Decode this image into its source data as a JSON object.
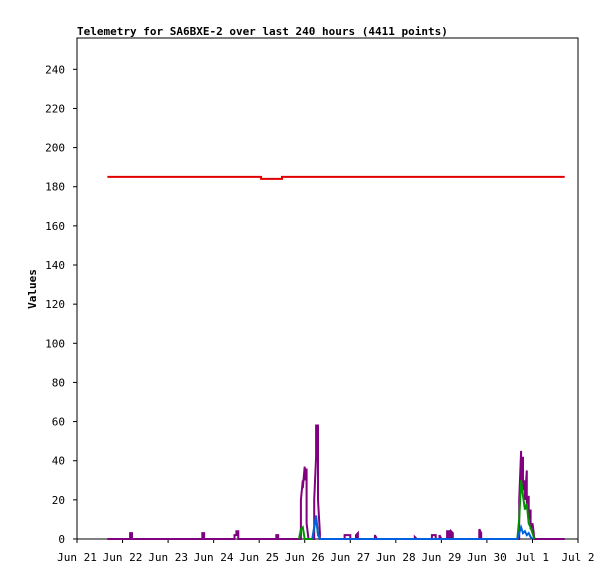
{
  "chart_data": {
    "type": "line",
    "title": "Telemetry for SA6BXE-2 over last 240 hours (4411 points)",
    "xlabel": "",
    "ylabel": "Values",
    "x_tick_labels": [
      "Jun 21",
      "Jun 22",
      "Jun 23",
      "Jun 24",
      "Jun 25",
      "Jun 26",
      "Jun 27",
      "Jun 28",
      "Jun 29",
      "Jun 30",
      "Jul 1",
      "Jul 2"
    ],
    "x_ticks_hours": [
      0,
      24,
      48,
      72,
      96,
      120,
      144,
      168,
      192,
      216,
      240,
      264
    ],
    "xlim_hours": [
      0,
      264
    ],
    "y_ticks": [
      0,
      20,
      40,
      60,
      80,
      100,
      120,
      140,
      160,
      180,
      200,
      220,
      240
    ],
    "ylim": [
      0,
      256
    ],
    "grid": false,
    "legend": "none",
    "series": [
      {
        "color": "#e00000",
        "points": [
          [
            16,
            185
          ],
          [
            97,
            185
          ],
          [
            97,
            184
          ],
          [
            108,
            184
          ],
          [
            108,
            185
          ],
          [
            257,
            185
          ]
        ]
      },
      {
        "color": "#800080",
        "points": [
          [
            16,
            0
          ],
          [
            28,
            0
          ],
          [
            28,
            3
          ],
          [
            29,
            3
          ],
          [
            29,
            0
          ],
          [
            66,
            0
          ],
          [
            66,
            3
          ],
          [
            67,
            3
          ],
          [
            67,
            0
          ],
          [
            83,
            0
          ],
          [
            83,
            2
          ],
          [
            84,
            2
          ],
          [
            84,
            4
          ],
          [
            85,
            4
          ],
          [
            85,
            0
          ],
          [
            105,
            0
          ],
          [
            105,
            2
          ],
          [
            106,
            2
          ],
          [
            106,
            0
          ],
          [
            118,
            0
          ],
          [
            118,
            20
          ],
          [
            119,
            30
          ],
          [
            119,
            26
          ],
          [
            120,
            37
          ],
          [
            120,
            30
          ],
          [
            121,
            36
          ],
          [
            121,
            8
          ],
          [
            122,
            0
          ],
          [
            125,
            0
          ],
          [
            125,
            20
          ],
          [
            126,
            42
          ],
          [
            126,
            58
          ],
          [
            127,
            58
          ],
          [
            127,
            20
          ],
          [
            128,
            3
          ],
          [
            128,
            0
          ],
          [
            141,
            0
          ],
          [
            141,
            2
          ],
          [
            144,
            2
          ],
          [
            144,
            0
          ],
          [
            147,
            0
          ],
          [
            147,
            2
          ],
          [
            148,
            3
          ],
          [
            148,
            0
          ],
          [
            157,
            0
          ],
          [
            157,
            2
          ],
          [
            158,
            0
          ],
          [
            178,
            0
          ],
          [
            178,
            1
          ],
          [
            179,
            0
          ],
          [
            187,
            0
          ],
          [
            187,
            2
          ],
          [
            189,
            2
          ],
          [
            189,
            0
          ],
          [
            191,
            0
          ],
          [
            191,
            2
          ],
          [
            192,
            0
          ],
          [
            195,
            0
          ],
          [
            195,
            4
          ],
          [
            196,
            4
          ],
          [
            196,
            0
          ],
          [
            197,
            0
          ],
          [
            197,
            4
          ],
          [
            198,
            3
          ],
          [
            198,
            0
          ],
          [
            212,
            0
          ],
          [
            212,
            5
          ],
          [
            213,
            3
          ],
          [
            213,
            0
          ],
          [
            233,
            0
          ],
          [
            233,
            20
          ],
          [
            234,
            45
          ],
          [
            234,
            30
          ],
          [
            235,
            42
          ],
          [
            235,
            25
          ],
          [
            236,
            30
          ],
          [
            236,
            20
          ],
          [
            237,
            35
          ],
          [
            237,
            18
          ],
          [
            238,
            22
          ],
          [
            238,
            10
          ],
          [
            239,
            15
          ],
          [
            239,
            5
          ],
          [
            240,
            8
          ],
          [
            241,
            0
          ],
          [
            257,
            0
          ]
        ]
      },
      {
        "color": "#009000",
        "points": [
          [
            117,
            0
          ],
          [
            118,
            5
          ],
          [
            119,
            6
          ],
          [
            120,
            0
          ],
          [
            124,
            0
          ],
          [
            125,
            6
          ],
          [
            126,
            10
          ],
          [
            127,
            3
          ],
          [
            128,
            0
          ],
          [
            232,
            0
          ],
          [
            233,
            10
          ],
          [
            234,
            30
          ],
          [
            235,
            22
          ],
          [
            236,
            15
          ],
          [
            237,
            18
          ],
          [
            238,
            8
          ],
          [
            239,
            6
          ],
          [
            240,
            3
          ],
          [
            241,
            0
          ]
        ]
      },
      {
        "color": "#0060e0",
        "points": [
          [
            124,
            0
          ],
          [
            125,
            6
          ],
          [
            126,
            12
          ],
          [
            127,
            2
          ],
          [
            128,
            0
          ],
          [
            232,
            0
          ],
          [
            233,
            3
          ],
          [
            234,
            6
          ],
          [
            235,
            3
          ],
          [
            236,
            4
          ],
          [
            237,
            2
          ],
          [
            238,
            3
          ],
          [
            239,
            1
          ],
          [
            240,
            0
          ]
        ]
      }
    ]
  }
}
